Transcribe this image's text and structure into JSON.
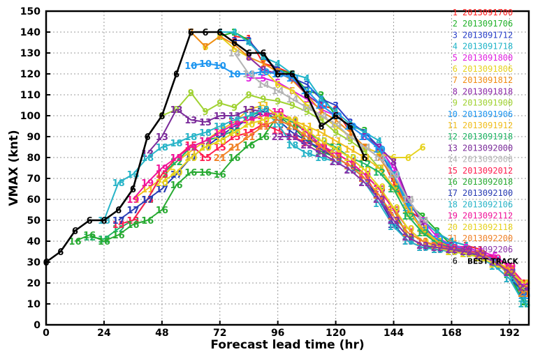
{
  "chart_data": {
    "type": "line",
    "title": "",
    "xlabel": "Forecast lead time (hr)",
    "ylabel": "VMAX (knt)",
    "xlim": [
      0,
      200
    ],
    "ylim": [
      0,
      150
    ],
    "xticks": [
      0,
      24,
      48,
      72,
      96,
      120,
      144,
      168,
      192
    ],
    "yticks": [
      0,
      10,
      20,
      30,
      40,
      50,
      60,
      70,
      80,
      90,
      100,
      110,
      120,
      130,
      140,
      150
    ],
    "grid": true,
    "legend_position": "right",
    "best_track": {
      "name": "BEST TRACK",
      "marker": "6",
      "color": "#000000",
      "x": [
        0,
        6,
        12,
        18,
        24,
        30,
        36,
        42,
        48,
        54,
        60,
        66,
        72,
        78,
        84,
        90,
        96,
        102,
        108,
        114,
        120,
        126,
        132
      ],
      "y": [
        30,
        35,
        45,
        50,
        50,
        55,
        65,
        90,
        100,
        120,
        140,
        140,
        140,
        135,
        130,
        130,
        120,
        120,
        110,
        95,
        100,
        95,
        80
      ]
    },
    "series": [
      {
        "name": "2013091700",
        "marker": "1",
        "color": "#ff2020",
        "x": [
          78,
          84,
          90,
          96,
          102,
          108,
          114,
          120,
          126,
          132,
          138,
          144,
          150,
          156,
          162,
          168,
          174,
          180,
          186,
          192,
          198
        ],
        "y": [
          138,
          137,
          125,
          123,
          120,
          110,
          105,
          103,
          92,
          85,
          82,
          68,
          55,
          50,
          44,
          40,
          38,
          36,
          32,
          28,
          20
        ]
      },
      {
        "name": "2013091706",
        "marker": "2",
        "color": "#22b22a",
        "x": [
          72,
          78,
          84,
          90,
          96,
          102,
          108,
          114,
          120,
          126,
          132,
          138,
          144,
          150,
          156,
          162,
          168,
          174,
          180,
          186,
          192,
          198
        ],
        "y": [
          138,
          140,
          136,
          128,
          122,
          120,
          112,
          110,
          100,
          95,
          93,
          83,
          72,
          58,
          52,
          45,
          38,
          36,
          34,
          30,
          25,
          11
        ]
      },
      {
        "name": "2013091712",
        "marker": "3",
        "color": "#2a40c8",
        "x": [
          78,
          84,
          90,
          96,
          102,
          108,
          114,
          120,
          126,
          132,
          138,
          144,
          150,
          156,
          162,
          168,
          174,
          180,
          186,
          192,
          198
        ],
        "y": [
          136,
          136,
          128,
          122,
          118,
          115,
          108,
          105,
          97,
          92,
          85,
          70,
          57,
          45,
          40,
          38,
          36,
          34,
          30,
          26,
          14
        ]
      },
      {
        "name": "2013091718",
        "marker": "4",
        "color": "#20b4c8",
        "x": [
          72,
          78,
          84,
          90,
          96,
          102,
          108,
          114,
          120,
          126,
          132,
          138,
          144,
          150,
          156,
          162,
          168,
          174,
          180,
          186,
          192,
          198
        ],
        "y": [
          140,
          140,
          135,
          128,
          125,
          120,
          118,
          108,
          102,
          96,
          92,
          88,
          72,
          58,
          50,
          44,
          40,
          38,
          34,
          30,
          25,
          12
        ]
      },
      {
        "name": "2013091800",
        "marker": "5",
        "color": "#e020e0",
        "x": [
          84,
          90,
          96,
          102,
          108,
          114,
          120,
          126,
          132,
          138,
          144,
          150,
          156,
          162,
          168,
          174,
          180,
          186,
          192,
          198
        ],
        "y": [
          118,
          118,
          116,
          112,
          108,
          103,
          100,
          95,
          90,
          85,
          75,
          60,
          50,
          42,
          38,
          37,
          35,
          33,
          28,
          18
        ]
      },
      {
        "name": "2013091806",
        "marker": "6",
        "color": "#e6d21e",
        "x": [
          66,
          72,
          78,
          84,
          90,
          96,
          102,
          108,
          114,
          120,
          126,
          132,
          138,
          144,
          150,
          156
        ],
        "y": [
          133,
          138,
          132,
          128,
          122,
          115,
          112,
          105,
          100,
          95,
          90,
          85,
          82,
          80,
          80,
          85
        ]
      },
      {
        "name": "2013091812",
        "marker": "7",
        "color": "#f08c14",
        "x": [
          60,
          66,
          72,
          78,
          84,
          90,
          96,
          102,
          108,
          114,
          120,
          126,
          132,
          138,
          144,
          150,
          156,
          162,
          168,
          174,
          180,
          186,
          192,
          198
        ],
        "y": [
          140,
          133,
          138,
          134,
          128,
          125,
          121,
          117,
          110,
          102,
          98,
          92,
          85,
          80,
          70,
          55,
          45,
          40,
          38,
          36,
          34,
          30,
          26,
          15
        ]
      },
      {
        "name": "2013091818",
        "marker": "8",
        "color": "#8c28a8",
        "x": [
          84,
          90,
          96,
          102,
          108,
          114,
          120,
          126,
          132,
          138,
          144,
          150,
          156,
          162,
          168,
          174,
          180,
          186,
          192,
          198
        ],
        "y": [
          128,
          122,
          120,
          118,
          110,
          105,
          100,
          95,
          90,
          85,
          78,
          60,
          48,
          40,
          38,
          36,
          34,
          30,
          26,
          16
        ]
      },
      {
        "name": "2013091900",
        "marker": "9",
        "color": "#a0d232",
        "x": [
          48,
          54,
          60,
          66,
          72,
          78,
          84,
          90,
          96,
          102,
          108,
          114,
          120,
          126,
          132,
          138,
          144,
          150,
          156,
          162,
          168,
          174,
          180,
          186,
          192,
          198
        ],
        "y": [
          100,
          103,
          111,
          102,
          106,
          104,
          110,
          108,
          107,
          105,
          102,
          98,
          92,
          88,
          83,
          75,
          65,
          52,
          44,
          40,
          37,
          35,
          33,
          30,
          27,
          17
        ]
      },
      {
        "name": "2013091906",
        "marker": "10",
        "color": "#1e96f0",
        "x": [
          60,
          66,
          72,
          78,
          84,
          90,
          96,
          102,
          108,
          114,
          120,
          126,
          132,
          138,
          144,
          150,
          156,
          162,
          168,
          174,
          180,
          186,
          192,
          198
        ],
        "y": [
          124,
          125,
          124,
          120,
          120,
          121,
          120,
          118,
          112,
          105,
          100,
          95,
          90,
          84,
          72,
          56,
          46,
          41,
          38,
          36,
          34,
          31,
          26,
          14
        ]
      },
      {
        "name": "2013091912",
        "marker": "11",
        "color": "#f0be1e",
        "x": [
          36,
          42,
          48,
          54,
          60,
          66,
          72,
          78,
          84,
          90,
          96,
          102,
          108,
          114,
          120,
          126,
          132,
          138,
          144,
          150,
          156,
          162,
          168,
          174,
          180,
          186,
          192,
          198
        ],
        "y": [
          60,
          65,
          70,
          78,
          83,
          88,
          93,
          97,
          103,
          105,
          100,
          98,
          95,
          92,
          88,
          84,
          80,
          75,
          66,
          55,
          46,
          40,
          37,
          35,
          33,
          30,
          27,
          20
        ]
      },
      {
        "name": "2013091918",
        "marker": "12",
        "color": "#1eb464",
        "x": [
          18,
          24,
          30,
          36,
          42,
          48,
          54,
          60,
          66,
          72,
          78,
          84,
          90,
          96,
          102,
          108,
          114,
          120,
          126,
          132,
          138,
          144,
          150,
          156,
          162,
          168,
          174,
          180,
          186,
          192,
          198
        ],
        "y": [
          42,
          41,
          46,
          50,
          60,
          72,
          78,
          85,
          88,
          90,
          93,
          100,
          102,
          100,
          97,
          92,
          88,
          85,
          80,
          77,
          73,
          65,
          52,
          44,
          39,
          37,
          35,
          33,
          30,
          25,
          10
        ]
      },
      {
        "name": "2013092000",
        "marker": "13",
        "color": "#7a2a9a",
        "x": [
          42,
          48,
          54,
          60,
          66,
          72,
          78,
          84,
          90,
          96,
          102,
          108,
          114,
          120,
          126,
          132,
          138,
          144,
          150,
          156,
          162,
          168,
          174,
          180,
          186,
          192,
          198
        ],
        "y": [
          82,
          90,
          103,
          98,
          97,
          100,
          100,
          103,
          102,
          98,
          95,
          90,
          86,
          80,
          76,
          70,
          62,
          50,
          42,
          38,
          37,
          36,
          34,
          33,
          30,
          26,
          18
        ]
      },
      {
        "name": "2013092006",
        "marker": "14",
        "color": "#b4b4b4",
        "x": [
          78,
          84,
          90,
          96,
          102,
          108,
          114,
          120,
          126,
          132,
          138,
          144,
          150,
          156
        ],
        "y": [
          130,
          120,
          115,
          112,
          108,
          104,
          100,
          96,
          90,
          85,
          80,
          72,
          60,
          50
        ]
      },
      {
        "name": "2013092012",
        "marker": "15",
        "color": "#ff1e50",
        "x": [
          30,
          36,
          42,
          48,
          54,
          60,
          66,
          72,
          78,
          84,
          90,
          96,
          102,
          108,
          114,
          120,
          126,
          132,
          138,
          144,
          150,
          156,
          162,
          168,
          174,
          180,
          186,
          192,
          198
        ],
        "y": [
          48,
          50,
          60,
          72,
          80,
          86,
          80,
          85,
          90,
          92,
          96,
          93,
          90,
          87,
          85,
          82,
          78,
          72,
          60,
          48,
          40,
          37,
          36,
          35,
          34,
          33,
          30,
          26,
          18
        ]
      },
      {
        "name": "2013092018",
        "marker": "16",
        "color": "#28aa32",
        "x": [
          12,
          18,
          24,
          30,
          36,
          42,
          48,
          54,
          60,
          66,
          72,
          78,
          84,
          90,
          96,
          102,
          108,
          114,
          120,
          126,
          132,
          138,
          144,
          150,
          156,
          162,
          168,
          174,
          180,
          186,
          192,
          198
        ],
        "y": [
          40,
          43,
          40,
          43,
          48,
          50,
          55,
          67,
          73,
          73,
          72,
          80,
          86,
          90,
          100,
          95,
          88,
          83,
          80,
          76,
          72,
          65,
          55,
          42,
          38,
          36,
          35,
          34,
          33,
          30,
          24,
          10
        ]
      },
      {
        "name": "2013092100",
        "marker": "17",
        "color": "#283cb4",
        "x": [
          30,
          36,
          42,
          48,
          54,
          60,
          66,
          72,
          78,
          84,
          90,
          96,
          102,
          108,
          114,
          120,
          126,
          132,
          138,
          144,
          150,
          156,
          162,
          168,
          174,
          180,
          186,
          192,
          198
        ],
        "y": [
          50,
          55,
          60,
          65,
          72,
          80,
          85,
          90,
          95,
          98,
          102,
          98,
          92,
          88,
          84,
          80,
          76,
          70,
          60,
          48,
          40,
          37,
          36,
          35,
          34,
          32,
          28,
          22,
          16
        ]
      },
      {
        "name": "2013092106",
        "marker": "18",
        "color": "#28b4c8",
        "x": [
          24,
          30,
          36,
          42,
          48,
          54,
          60,
          66,
          72,
          78,
          84,
          90,
          96,
          102,
          108,
          114,
          120,
          126,
          132,
          138,
          144,
          150,
          156,
          162,
          168,
          174,
          180,
          186,
          192,
          198
        ],
        "y": [
          50,
          68,
          72,
          80,
          85,
          87,
          90,
          92,
          95,
          98,
          100,
          103,
          96,
          86,
          82,
          80,
          78,
          74,
          68,
          58,
          47,
          40,
          37,
          36,
          35,
          34,
          32,
          28,
          22,
          10
        ]
      },
      {
        "name": "2013092112",
        "marker": "19",
        "color": "#f0149a",
        "x": [
          36,
          42,
          48,
          54,
          60,
          66,
          72,
          78,
          84,
          90,
          96,
          102,
          108,
          114,
          120,
          126,
          132,
          138,
          144,
          150,
          156,
          162,
          168,
          174,
          180,
          186,
          192,
          198
        ],
        "y": [
          60,
          68,
          75,
          80,
          85,
          88,
          92,
          96,
          98,
          100,
          102,
          98,
          92,
          86,
          82,
          78,
          72,
          65,
          55,
          46,
          40,
          38,
          37,
          36,
          34,
          32,
          28,
          20
        ]
      },
      {
        "name": "2013092118",
        "marker": "20",
        "color": "#e6d21e",
        "x": [
          48,
          54,
          60,
          66,
          72,
          78,
          84,
          90,
          96,
          102,
          108,
          114,
          120,
          126,
          132,
          138,
          144,
          150,
          156,
          162,
          168,
          174,
          180,
          186,
          192,
          198
        ],
        "y": [
          68,
          73,
          80,
          85,
          88,
          92,
          96,
          98,
          100,
          98,
          93,
          88,
          84,
          80,
          74,
          66,
          56,
          46,
          40,
          37,
          35,
          34,
          32,
          29,
          25,
          20
        ]
      },
      {
        "name": "2013092200",
        "marker": "21",
        "color": "#f08228",
        "x": [
          72,
          78,
          84,
          90,
          96,
          102,
          108,
          114,
          120,
          126,
          132,
          138,
          144,
          150,
          156,
          162,
          168,
          174,
          180,
          186,
          192,
          198
        ],
        "y": [
          80,
          85,
          90,
          95,
          98,
          95,
          90,
          85,
          80,
          76,
          70,
          62,
          52,
          44,
          40,
          38,
          36,
          35,
          34,
          30,
          26,
          15
        ]
      },
      {
        "name": "2013092206",
        "marker": "22",
        "color": "#8c32a8",
        "x": [
          96,
          102,
          108,
          114,
          120,
          126,
          132,
          138,
          144,
          150,
          156,
          162,
          168,
          174,
          180,
          186,
          192,
          198
        ],
        "y": [
          90,
          90,
          86,
          82,
          78,
          74,
          68,
          60,
          50,
          42,
          38,
          37,
          36,
          35,
          33,
          30,
          25,
          18
        ]
      }
    ]
  }
}
